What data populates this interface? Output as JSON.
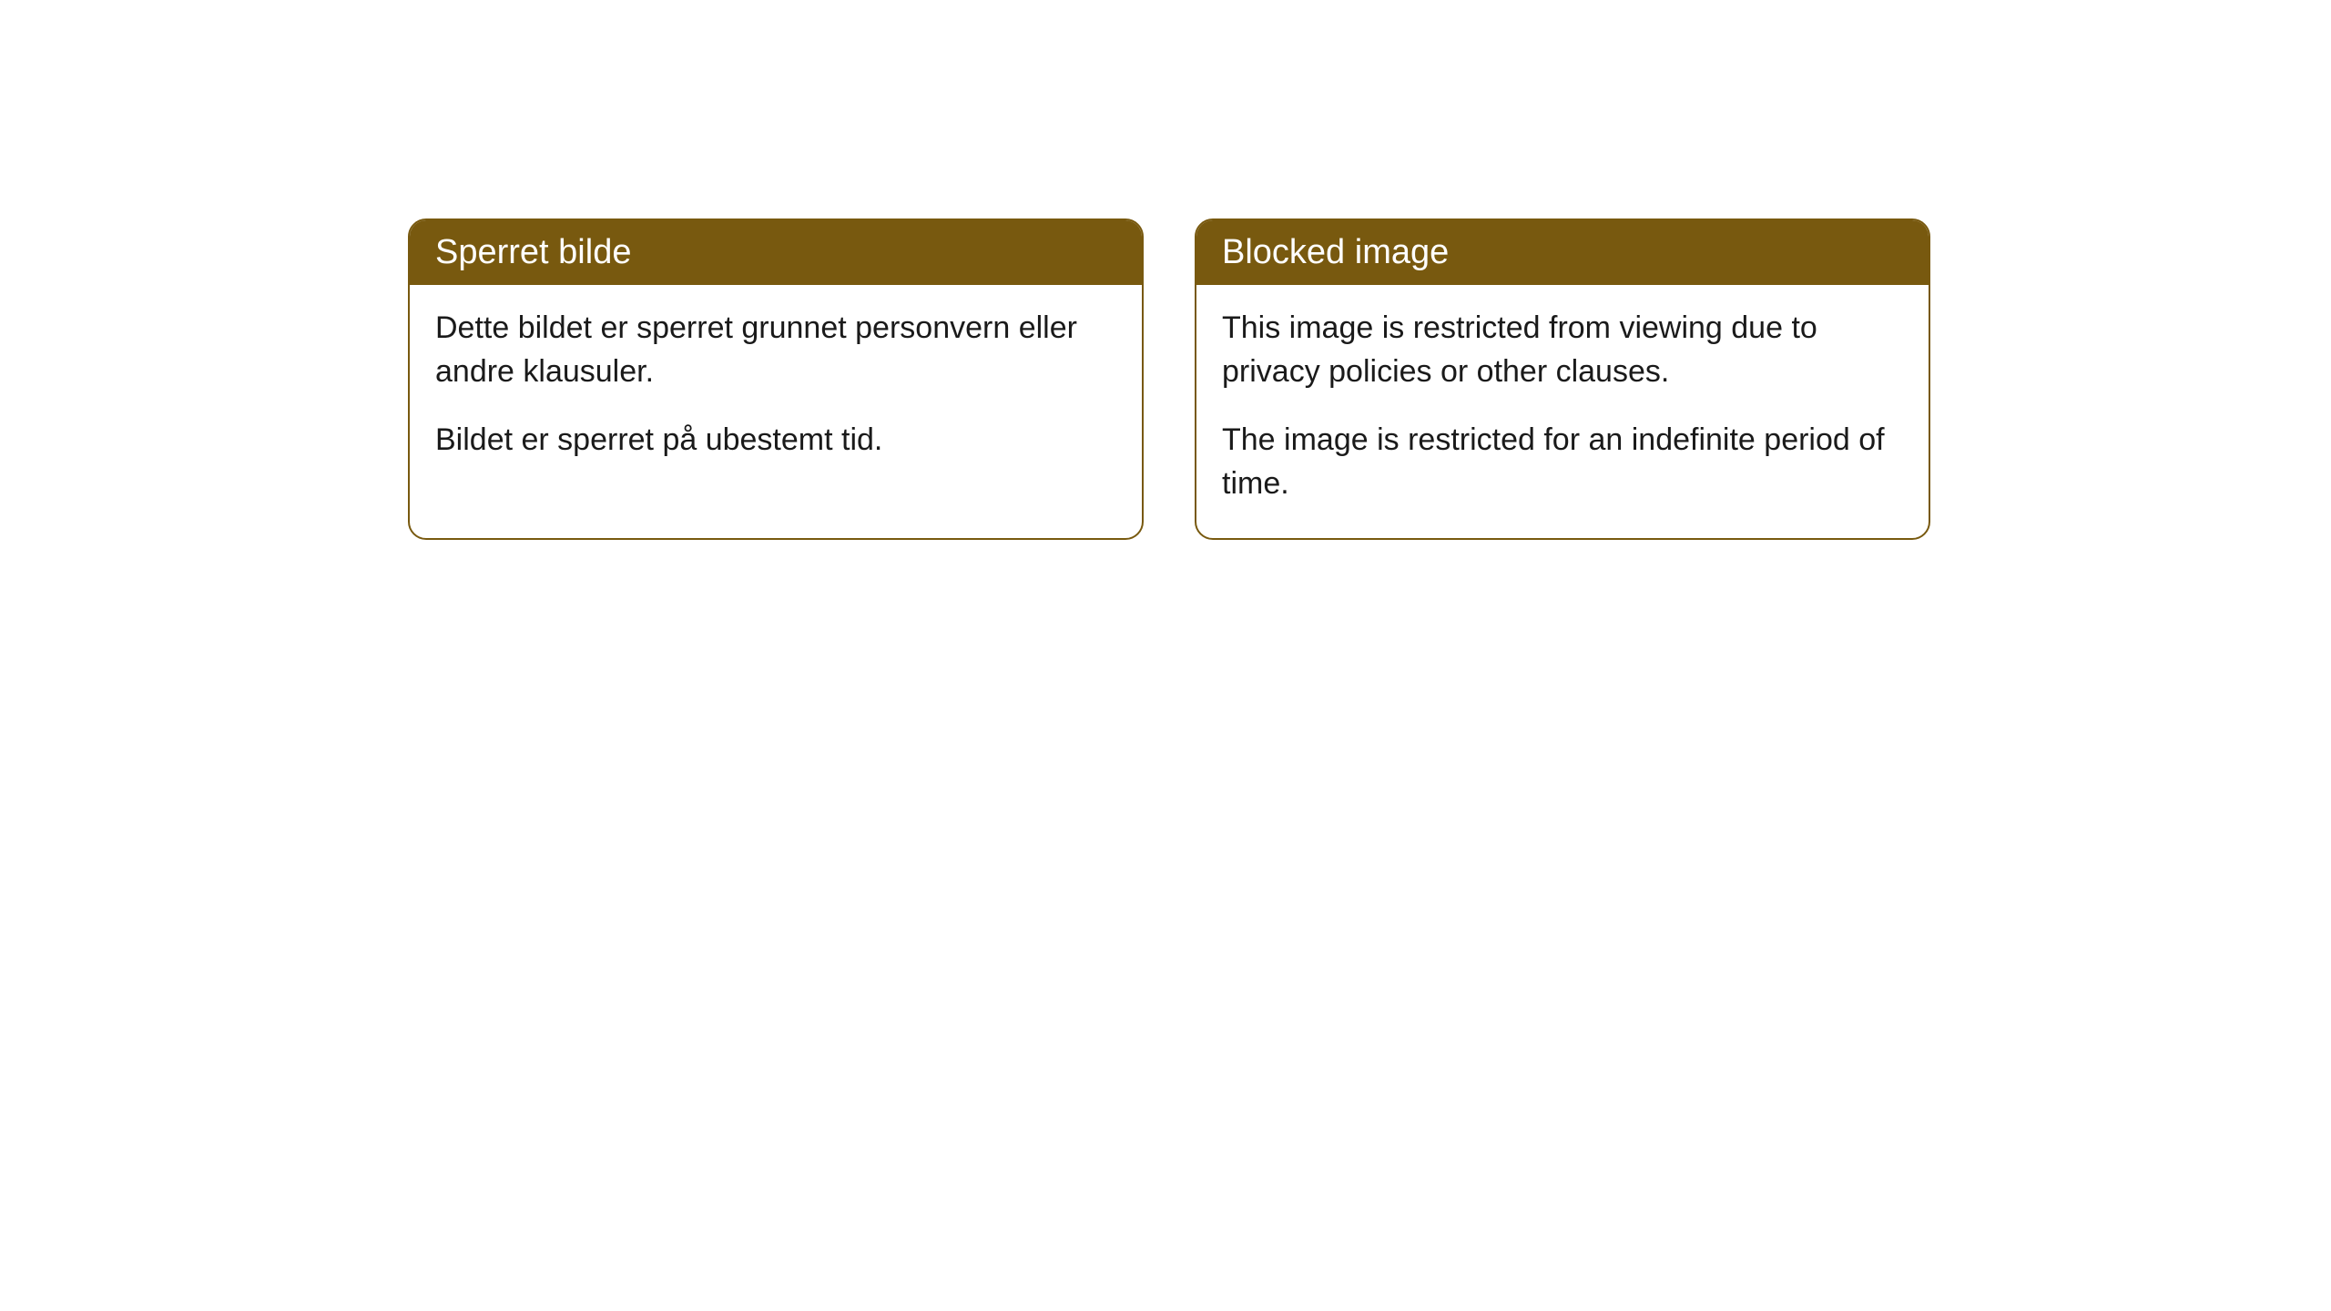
{
  "cards": [
    {
      "title": "Sperret bilde",
      "paragraph1": "Dette bildet er sperret grunnet personvern eller andre klausuler.",
      "paragraph2": "Bildet er sperret på ubestemt tid."
    },
    {
      "title": "Blocked image",
      "paragraph1": "This image is restricted from viewing due to privacy policies or other clauses.",
      "paragraph2": "The image is restricted for an indefinite period of time."
    }
  ],
  "styling": {
    "header_bg_color": "#78590f",
    "header_text_color": "#ffffff",
    "border_color": "#78590f",
    "body_bg_color": "#ffffff",
    "body_text_color": "#1a1a1a",
    "border_radius": 20,
    "header_fontsize": 38,
    "body_fontsize": 34
  }
}
